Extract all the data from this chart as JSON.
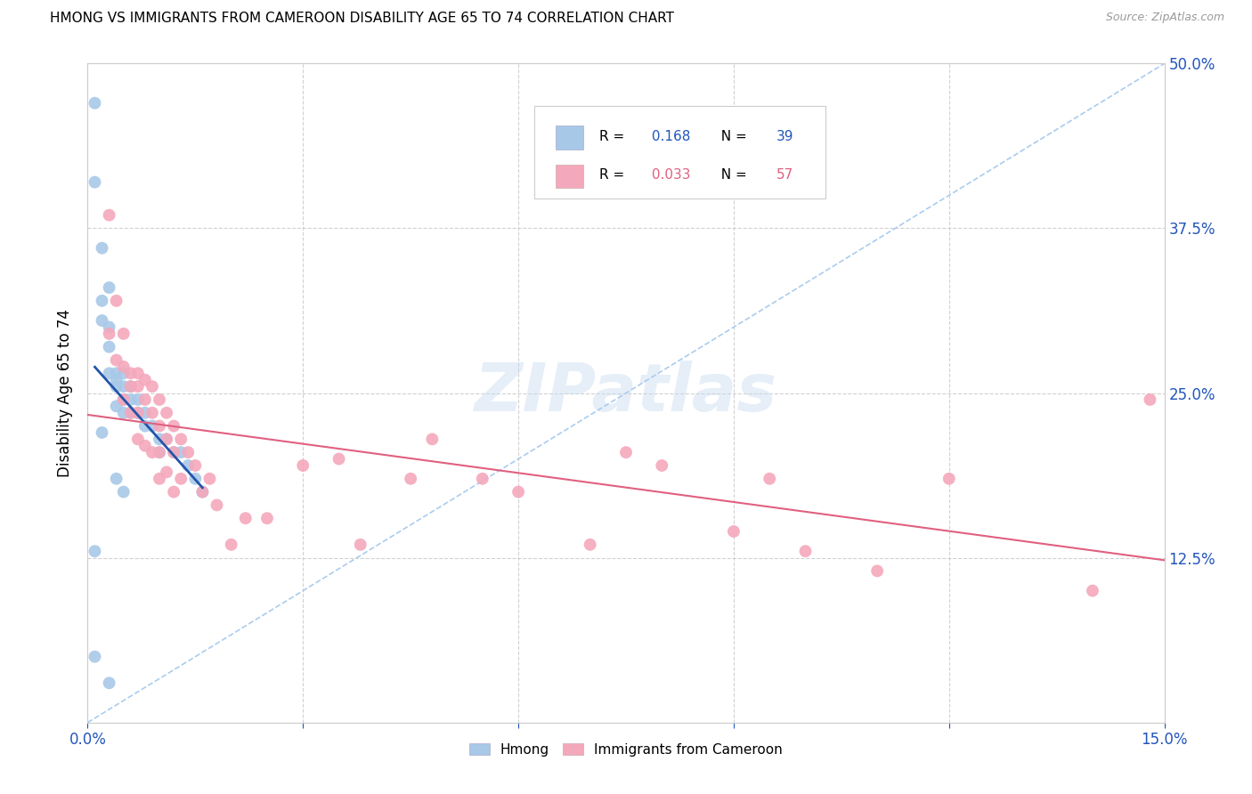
{
  "title": "HMONG VS IMMIGRANTS FROM CAMEROON DISABILITY AGE 65 TO 74 CORRELATION CHART",
  "source": "Source: ZipAtlas.com",
  "ylabel": "Disability Age 65 to 74",
  "xlim": [
    0.0,
    0.15
  ],
  "ylim": [
    0.0,
    0.5
  ],
  "hmong_R": 0.168,
  "hmong_N": 39,
  "cameroon_R": 0.033,
  "cameroon_N": 57,
  "hmong_color": "#a8c8e8",
  "cameroon_color": "#f4a8bc",
  "hmong_line_color": "#2255aa",
  "cameroon_line_color": "#e06080",
  "diagonal_color": "#aaccee",
  "watermark": "ZIPatlas",
  "hmong_x": [
    0.001,
    0.001,
    0.001,
    0.001,
    0.002,
    0.002,
    0.002,
    0.002,
    0.003,
    0.003,
    0.003,
    0.003,
    0.003,
    0.004,
    0.004,
    0.004,
    0.004,
    0.004,
    0.005,
    0.005,
    0.005,
    0.005,
    0.005,
    0.006,
    0.006,
    0.006,
    0.007,
    0.007,
    0.008,
    0.008,
    0.009,
    0.01,
    0.01,
    0.011,
    0.012,
    0.013,
    0.014,
    0.015,
    0.016
  ],
  "hmong_y": [
    0.47,
    0.41,
    0.13,
    0.05,
    0.36,
    0.32,
    0.305,
    0.22,
    0.33,
    0.3,
    0.285,
    0.265,
    0.03,
    0.265,
    0.26,
    0.255,
    0.24,
    0.185,
    0.265,
    0.255,
    0.245,
    0.235,
    0.175,
    0.255,
    0.245,
    0.235,
    0.245,
    0.235,
    0.235,
    0.225,
    0.225,
    0.215,
    0.205,
    0.215,
    0.205,
    0.205,
    0.195,
    0.185,
    0.175
  ],
  "cameroon_x": [
    0.003,
    0.003,
    0.004,
    0.004,
    0.005,
    0.005,
    0.005,
    0.006,
    0.006,
    0.006,
    0.007,
    0.007,
    0.007,
    0.007,
    0.008,
    0.008,
    0.008,
    0.009,
    0.009,
    0.009,
    0.01,
    0.01,
    0.01,
    0.01,
    0.011,
    0.011,
    0.011,
    0.012,
    0.012,
    0.012,
    0.013,
    0.013,
    0.014,
    0.015,
    0.016,
    0.017,
    0.018,
    0.02,
    0.022,
    0.025,
    0.03,
    0.035,
    0.038,
    0.045,
    0.048,
    0.055,
    0.06,
    0.07,
    0.075,
    0.08,
    0.09,
    0.095,
    0.1,
    0.11,
    0.12,
    0.14,
    0.148
  ],
  "cameroon_y": [
    0.385,
    0.295,
    0.32,
    0.275,
    0.295,
    0.27,
    0.245,
    0.265,
    0.255,
    0.235,
    0.265,
    0.255,
    0.235,
    0.215,
    0.26,
    0.245,
    0.21,
    0.255,
    0.235,
    0.205,
    0.245,
    0.225,
    0.205,
    0.185,
    0.235,
    0.215,
    0.19,
    0.225,
    0.205,
    0.175,
    0.215,
    0.185,
    0.205,
    0.195,
    0.175,
    0.185,
    0.165,
    0.135,
    0.155,
    0.155,
    0.195,
    0.2,
    0.135,
    0.185,
    0.215,
    0.185,
    0.175,
    0.135,
    0.205,
    0.195,
    0.145,
    0.185,
    0.13,
    0.115,
    0.185,
    0.1,
    0.245
  ]
}
